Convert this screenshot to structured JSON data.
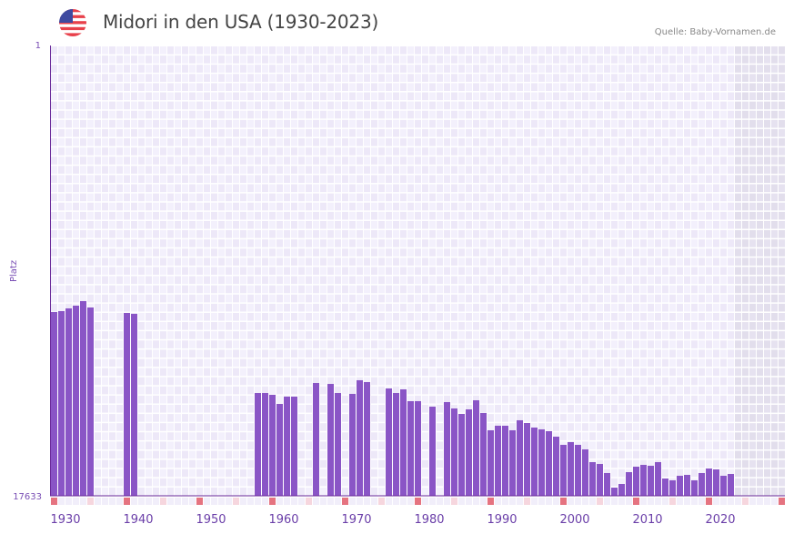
{
  "header": {
    "title": "Midori in den USA (1930-2023)",
    "source": "Quelle: Baby-Vornamen.de",
    "flag_icon": "us-flag-icon"
  },
  "colors": {
    "bar": "#8a55c6",
    "axis": "#6a2a9a",
    "grid_bg": "#f2eefb",
    "decade_marker": "#e57380",
    "half_decade_marker": "#f6d6de",
    "future_bg": "#e4e0ee"
  },
  "chart_data": {
    "type": "bar",
    "title": "Midori in den USA (1930-2023)",
    "xlabel": "",
    "ylabel": "Platz",
    "y_inverted": true,
    "ylim": [
      1,
      17633
    ],
    "y_ticks": [
      "1",
      "17633"
    ],
    "xlim": [
      1930,
      2030
    ],
    "x_ticks": [
      "1930",
      "1940",
      "1950",
      "1960",
      "1970",
      "1980",
      "1990",
      "2000",
      "2010",
      "2020"
    ],
    "grid": true,
    "data": [
      {
        "year": 1930,
        "rank": 10438
      },
      {
        "year": 1931,
        "rank": 10402
      },
      {
        "year": 1932,
        "rank": 10295
      },
      {
        "year": 1933,
        "rank": 10188
      },
      {
        "year": 1934,
        "rank": 10010
      },
      {
        "year": 1935,
        "rank": 10260
      },
      {
        "year": 1940,
        "rank": 10473
      },
      {
        "year": 1941,
        "rank": 10509
      },
      {
        "year": 1958,
        "rank": 13608
      },
      {
        "year": 1959,
        "rank": 13608
      },
      {
        "year": 1960,
        "rank": 13679
      },
      {
        "year": 1961,
        "rank": 14035
      },
      {
        "year": 1962,
        "rank": 13750
      },
      {
        "year": 1963,
        "rank": 13750
      },
      {
        "year": 1966,
        "rank": 13216
      },
      {
        "year": 1968,
        "rank": 13252
      },
      {
        "year": 1969,
        "rank": 13608
      },
      {
        "year": 1971,
        "rank": 13643
      },
      {
        "year": 1972,
        "rank": 13109
      },
      {
        "year": 1973,
        "rank": 13180
      },
      {
        "year": 1976,
        "rank": 13430
      },
      {
        "year": 1977,
        "rank": 13608
      },
      {
        "year": 1978,
        "rank": 13465
      },
      {
        "year": 1979,
        "rank": 13928
      },
      {
        "year": 1980,
        "rank": 13928
      },
      {
        "year": 1982,
        "rank": 14142
      },
      {
        "year": 1984,
        "rank": 13964
      },
      {
        "year": 1985,
        "rank": 14213
      },
      {
        "year": 1986,
        "rank": 14427
      },
      {
        "year": 1987,
        "rank": 14249
      },
      {
        "year": 1988,
        "rank": 13893
      },
      {
        "year": 1989,
        "rank": 14391
      },
      {
        "year": 1990,
        "rank": 15068
      },
      {
        "year": 1991,
        "rank": 14890
      },
      {
        "year": 1992,
        "rank": 14890
      },
      {
        "year": 1993,
        "rank": 15068
      },
      {
        "year": 1994,
        "rank": 14676
      },
      {
        "year": 1995,
        "rank": 14783
      },
      {
        "year": 1996,
        "rank": 14961
      },
      {
        "year": 1997,
        "rank": 15032
      },
      {
        "year": 1998,
        "rank": 15104
      },
      {
        "year": 1999,
        "rank": 15318
      },
      {
        "year": 2000,
        "rank": 15638
      },
      {
        "year": 2001,
        "rank": 15531
      },
      {
        "year": 2002,
        "rank": 15638
      },
      {
        "year": 2003,
        "rank": 15816
      },
      {
        "year": 2004,
        "rank": 16315
      },
      {
        "year": 2005,
        "rank": 16386
      },
      {
        "year": 2006,
        "rank": 16742
      },
      {
        "year": 2007,
        "rank": 17313
      },
      {
        "year": 2008,
        "rank": 17170
      },
      {
        "year": 2009,
        "rank": 16707
      },
      {
        "year": 2010,
        "rank": 16493
      },
      {
        "year": 2011,
        "rank": 16422
      },
      {
        "year": 2012,
        "rank": 16457
      },
      {
        "year": 2013,
        "rank": 16315
      },
      {
        "year": 2014,
        "rank": 16956
      },
      {
        "year": 2015,
        "rank": 17028
      },
      {
        "year": 2016,
        "rank": 16849
      },
      {
        "year": 2017,
        "rank": 16814
      },
      {
        "year": 2018,
        "rank": 17028
      },
      {
        "year": 2019,
        "rank": 16742
      },
      {
        "year": 2020,
        "rank": 16564
      },
      {
        "year": 2021,
        "rank": 16600
      },
      {
        "year": 2022,
        "rank": 16849
      },
      {
        "year": 2023,
        "rank": 16778
      }
    ]
  }
}
